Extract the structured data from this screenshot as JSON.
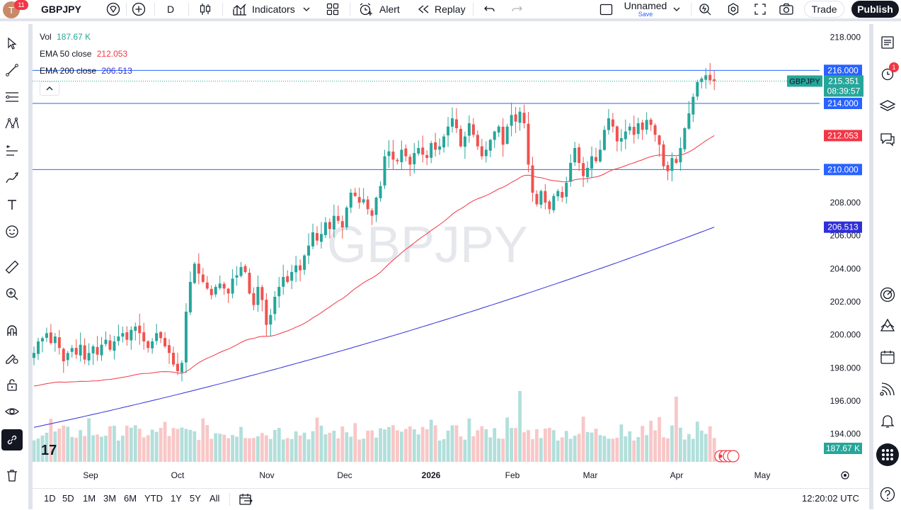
{
  "toolbar": {
    "avatar_letter": "T",
    "notification_count": "11",
    "symbol": "GBPJPY",
    "interval": "D",
    "indicators_label": "Indicators",
    "alert_label": "Alert",
    "replay_label": "Replay",
    "layout_name": "Unnamed",
    "layout_save": "Save",
    "trade_label": "Trade",
    "publish_label": "Publish"
  },
  "legend": {
    "vol_label": "Vol",
    "vol_value": "187.67 K",
    "ema50_label": "EMA 50 close",
    "ema50_value": "212.053",
    "ema200_label": "EMA 200 close",
    "ema200_value": "206.513"
  },
  "watermark": "GBPJPY",
  "price_axis": {
    "ticks": [
      "218.000",
      "216.000",
      "214.000",
      "212.000",
      "210.000",
      "208.000",
      "206.000",
      "204.000",
      "202.000",
      "200.000",
      "198.000",
      "196.000",
      "194.000"
    ],
    "symbol_tag": "GBPJPY",
    "last_price": "215.351",
    "countdown": "08:39:57",
    "level_216": "216.000",
    "level_214": "214.000",
    "level_210": "210.000",
    "ema50_tag": "212.053",
    "ema200_tag": "206.513",
    "volume_tag": "187.67 K"
  },
  "time_axis": [
    "Sep",
    "Oct",
    "Nov",
    "Dec",
    "2026",
    "Feb",
    "Mar",
    "Apr",
    "May"
  ],
  "bottom": {
    "ranges": [
      "1D",
      "5D",
      "1M",
      "3M",
      "6M",
      "YTD",
      "1Y",
      "5Y",
      "All"
    ],
    "clock": "12:20:02 UTC"
  },
  "right_panel": {
    "alerts_badge": "1"
  },
  "colors": {
    "up": "#26a69a",
    "down": "#ef5350",
    "ema50": "#f23645",
    "ema200": "#2f2fd9",
    "hline": "#2962ff",
    "vol_up": "#b2dfdb",
    "vol_down": "#f8c7c7"
  },
  "chart_data": {
    "type": "candlestick",
    "symbol": "GBPJPY",
    "ylim": [
      193.0,
      218.8
    ],
    "horizontal_lines": [
      216.0,
      214.0,
      210.0
    ],
    "last_price": 215.351,
    "x_labels": [
      "Sep",
      "Oct",
      "Nov",
      "Dec",
      "2026",
      "Feb",
      "Mar",
      "Apr",
      "May"
    ],
    "closes": [
      198.9,
      199.6,
      199.8,
      200.1,
      199.5,
      199.9,
      199.2,
      198.4,
      198.9,
      199.2,
      198.8,
      199.4,
      198.5,
      198.9,
      199.3,
      198.8,
      199.4,
      199.7,
      199.1,
      199.6,
      199.9,
      200.1,
      199.7,
      200.3,
      200.5,
      200.1,
      199.6,
      199.2,
      199.6,
      200.1,
      199.8,
      199.3,
      198.9,
      198.2,
      197.8,
      198.3,
      201.4,
      203.2,
      204.3,
      203.7,
      203.2,
      202.8,
      202.4,
      202.9,
      203.1,
      202.8,
      202.5,
      203.4,
      203.6,
      204.1,
      203.8,
      202.5,
      201.8,
      202.9,
      202.1,
      200.6,
      201.2,
      202.3,
      202.9,
      203.5,
      203.2,
      203.8,
      204.2,
      203.9,
      204.8,
      205.4,
      206.2,
      205.7,
      206.1,
      206.8,
      206.4,
      207.2,
      206.9,
      206.5,
      207.7,
      208.6,
      208.4,
      208.0,
      208.2,
      207.6,
      207.2,
      208.3,
      209.0,
      210.8,
      211.1,
      210.6,
      210.5,
      211.2,
      210.8,
      210.3,
      211.0,
      211.3,
      210.9,
      210.7,
      211.6,
      211.2,
      211.4,
      212.0,
      212.6,
      213.1,
      212.5,
      211.4,
      212.0,
      212.8,
      212.1,
      211.4,
      210.8,
      211.2,
      211.8,
      212.3,
      212.6,
      211.5,
      212.6,
      213.3,
      212.9,
      213.5,
      212.8,
      210.3,
      208.6,
      207.9,
      208.7,
      208.0,
      207.6,
      208.4,
      208.7,
      208.3,
      209.2,
      210.4,
      211.3,
      210.4,
      209.6,
      210.1,
      210.8,
      210.5,
      211.2,
      212.4,
      213.1,
      212.6,
      211.7,
      211.9,
      212.3,
      212.6,
      212.1,
      212.8,
      212.4,
      213.0,
      212.7,
      212.1,
      211.5,
      210.2,
      209.9,
      210.7,
      210.4,
      211.3,
      212.5,
      213.4,
      214.4,
      215.3,
      215.5,
      215.7,
      215.4,
      215.35
    ],
    "ema50_endpoints": [
      196.9,
      212.053
    ],
    "ema200_endpoints": [
      194.4,
      206.513
    ],
    "volume_last": 187.67,
    "volume_peak_label": "198.7 (tall bar near Mar 24)"
  }
}
